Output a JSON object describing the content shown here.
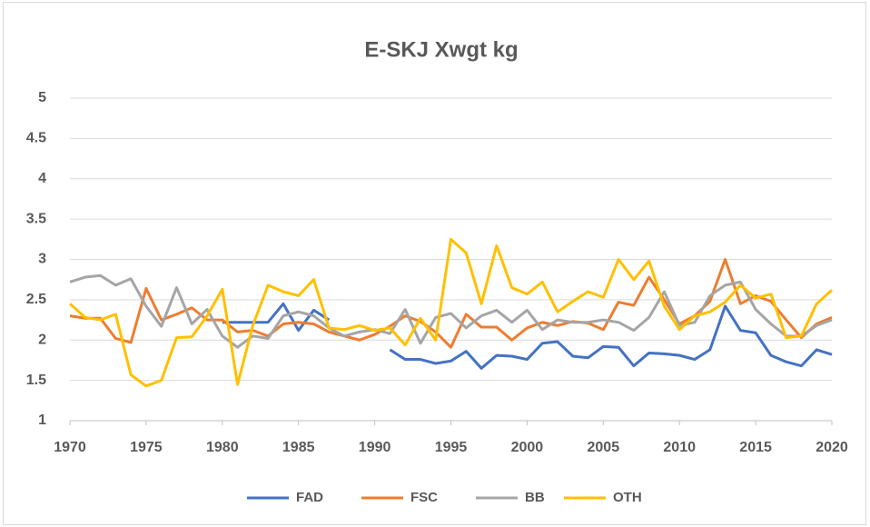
{
  "chart_data": {
    "type": "line",
    "title": "E-SKJ Xwgt kg",
    "x": [
      1970,
      1971,
      1972,
      1973,
      1974,
      1975,
      1976,
      1977,
      1978,
      1979,
      1980,
      1981,
      1982,
      1983,
      1984,
      1985,
      1986,
      1987,
      1988,
      1989,
      1990,
      1991,
      1992,
      1993,
      1994,
      1995,
      1996,
      1997,
      1998,
      1999,
      2000,
      2001,
      2002,
      2003,
      2004,
      2005,
      2006,
      2007,
      2008,
      2009,
      2010,
      2011,
      2012,
      2013,
      2014,
      2015,
      2016,
      2017,
      2018,
      2019,
      2020
    ],
    "series": [
      {
        "name": "FAD",
        "color": "#4472c4",
        "values": [
          null,
          null,
          null,
          null,
          null,
          null,
          null,
          null,
          null,
          null,
          2.22,
          2.22,
          2.22,
          2.22,
          2.45,
          2.12,
          2.37,
          2.25,
          null,
          null,
          null,
          1.88,
          1.76,
          1.76,
          1.71,
          1.74,
          1.86,
          1.65,
          1.81,
          1.8,
          1.76,
          1.96,
          1.98,
          1.8,
          1.78,
          1.92,
          1.91,
          1.68,
          1.84,
          1.83,
          1.81,
          1.76,
          1.88,
          2.42,
          2.12,
          2.09,
          1.81,
          1.73,
          1.68,
          1.88,
          1.82
        ]
      },
      {
        "name": "FSC",
        "color": "#ed7d31",
        "values": [
          2.3,
          2.27,
          2.27,
          2.02,
          1.97,
          2.64,
          2.25,
          2.32,
          2.4,
          2.25,
          2.25,
          2.1,
          2.12,
          2.05,
          2.2,
          2.22,
          2.2,
          2.1,
          2.05,
          2.0,
          2.07,
          2.17,
          2.3,
          2.23,
          2.1,
          1.91,
          2.32,
          2.16,
          2.16,
          2.0,
          2.15,
          2.22,
          2.18,
          2.23,
          2.21,
          2.13,
          2.47,
          2.43,
          2.78,
          2.5,
          2.2,
          2.3,
          2.48,
          3.0,
          2.45,
          2.55,
          2.48,
          2.25,
          2.03,
          2.2,
          2.28
        ]
      },
      {
        "name": "BB",
        "color": "#a5a5a5",
        "values": [
          2.72,
          2.78,
          2.8,
          2.68,
          2.76,
          2.42,
          2.17,
          2.65,
          2.2,
          2.38,
          2.05,
          1.91,
          2.05,
          2.02,
          2.3,
          2.35,
          2.3,
          2.15,
          2.05,
          2.1,
          2.13,
          2.08,
          2.38,
          1.96,
          2.28,
          2.33,
          2.15,
          2.3,
          2.37,
          2.22,
          2.37,
          2.13,
          2.25,
          2.22,
          2.22,
          2.25,
          2.22,
          2.12,
          2.28,
          2.6,
          2.18,
          2.22,
          2.55,
          2.68,
          2.72,
          2.38,
          2.2,
          2.05,
          2.05,
          2.18,
          2.25
        ]
      },
      {
        "name": "OTH",
        "color": "#ffc000",
        "values": [
          2.45,
          2.28,
          2.25,
          2.32,
          1.57,
          1.43,
          1.5,
          2.03,
          2.04,
          2.3,
          2.63,
          1.45,
          2.18,
          2.68,
          2.6,
          2.55,
          2.75,
          2.15,
          2.13,
          2.18,
          2.12,
          2.15,
          1.94,
          2.27,
          2.0,
          3.25,
          3.08,
          2.45,
          3.17,
          2.65,
          2.57,
          2.72,
          2.35,
          2.48,
          2.6,
          2.53,
          3.0,
          2.75,
          2.98,
          2.42,
          2.13,
          2.3,
          2.35,
          2.47,
          2.68,
          2.52,
          2.57,
          2.03,
          2.05,
          2.45,
          2.62
        ]
      }
    ],
    "xlim": [
      1970,
      2020
    ],
    "xticks": [
      1970,
      1975,
      1980,
      1985,
      1990,
      1995,
      2000,
      2005,
      2010,
      2015,
      2020
    ],
    "ylim": [
      1,
      5
    ],
    "yticks": [
      1,
      1.5,
      2,
      2.5,
      3,
      3.5,
      4,
      4.5,
      5
    ],
    "grid": true,
    "legend": "bottom"
  }
}
